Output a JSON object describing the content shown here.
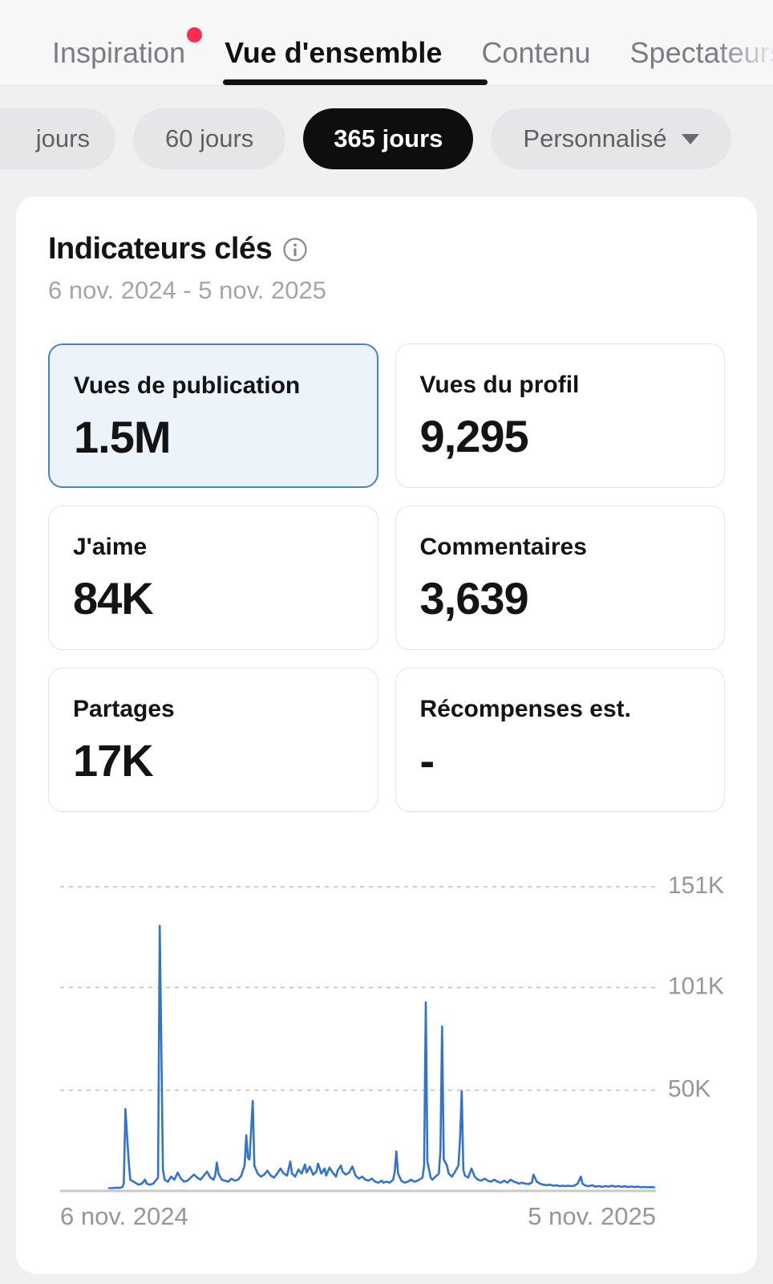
{
  "tabs": [
    {
      "label": "Inspiration",
      "active": false,
      "has_badge": true
    },
    {
      "label": "Vue d'ensemble",
      "active": true
    },
    {
      "label": "Contenu",
      "active": false
    },
    {
      "label": "Spectateurs",
      "active": false,
      "clipped": true
    }
  ],
  "pills": [
    {
      "label": "jours",
      "selected": false,
      "clipped_left": true
    },
    {
      "label": "60 jours",
      "selected": false
    },
    {
      "label": "365 jours",
      "selected": true
    },
    {
      "label": "Personnalisé",
      "selected": false,
      "has_caret": true
    }
  ],
  "card": {
    "title": "Indicateurs clés",
    "date_range": "6 nov. 2024 - 5 nov. 2025"
  },
  "metrics": [
    {
      "label": "Vues de publication",
      "value": "1.5M",
      "selected": true
    },
    {
      "label": "Vues du profil",
      "value": "9,295",
      "selected": false
    },
    {
      "label": "J'aime",
      "value": "84K",
      "selected": false
    },
    {
      "label": "Commentaires",
      "value": "3,639",
      "selected": false
    },
    {
      "label": "Partages",
      "value": "17K",
      "selected": false
    },
    {
      "label": "Récompenses est.",
      "value": "-",
      "selected": false
    }
  ],
  "colors": {
    "badge_red": "#fe2c55",
    "line_blue": "#3273d2",
    "selected_card_border": "#4584c6",
    "selected_card_bg": "#edf3fa",
    "grid_gray": "#bdbdbf",
    "axis_label_gray": "#95959a",
    "baseline_gray": "#c9c9cb"
  },
  "chart_data": {
    "type": "line",
    "series_name": "Vues de publication",
    "x_axis_labels": [
      "6 nov. 2024",
      "5 nov. 2025"
    ],
    "x_range_days": 365,
    "unit": "K",
    "ylim": [
      0,
      170
    ],
    "grid": true,
    "legend": false,
    "y_gridlines": [
      {
        "label": "151K",
        "value": 151
      },
      {
        "label": "101K",
        "value": 101
      },
      {
        "label": "50K",
        "value": 50
      }
    ],
    "points": [
      [
        30,
        0.8
      ],
      [
        32,
        0.8
      ],
      [
        34,
        1.0
      ],
      [
        36,
        0.9
      ],
      [
        38,
        1.2
      ],
      [
        39,
        3
      ],
      [
        40,
        40
      ],
      [
        42,
        14
      ],
      [
        43,
        5
      ],
      [
        45,
        4
      ],
      [
        47,
        3
      ],
      [
        48,
        2.5
      ],
      [
        50,
        3
      ],
      [
        52,
        5
      ],
      [
        53,
        3
      ],
      [
        55,
        2.5
      ],
      [
        57,
        3
      ],
      [
        58,
        4
      ],
      [
        60,
        6
      ],
      [
        61,
        131
      ],
      [
        63,
        10
      ],
      [
        64,
        5
      ],
      [
        66,
        4
      ],
      [
        68,
        6.5
      ],
      [
        70,
        5
      ],
      [
        72,
        8.5
      ],
      [
        74,
        5.5
      ],
      [
        76,
        4
      ],
      [
        78,
        4.5
      ],
      [
        80,
        6
      ],
      [
        82,
        7.5
      ],
      [
        84,
        6
      ],
      [
        86,
        5
      ],
      [
        88,
        7
      ],
      [
        90,
        9
      ],
      [
        92,
        6
      ],
      [
        94,
        5
      ],
      [
        95,
        7
      ],
      [
        96,
        13.5
      ],
      [
        97,
        8
      ],
      [
        99,
        5
      ],
      [
        101,
        4.5
      ],
      [
        103,
        4
      ],
      [
        105,
        5.5
      ],
      [
        107,
        4.5
      ],
      [
        109,
        5
      ],
      [
        111,
        7
      ],
      [
        113,
        12
      ],
      [
        114,
        27
      ],
      [
        115,
        16
      ],
      [
        116,
        15
      ],
      [
        118,
        44
      ],
      [
        119,
        12
      ],
      [
        121,
        8
      ],
      [
        123,
        6.5
      ],
      [
        125,
        7.5
      ],
      [
        127,
        9.5
      ],
      [
        129,
        7
      ],
      [
        131,
        6
      ],
      [
        133,
        8
      ],
      [
        135,
        10.5
      ],
      [
        137,
        8
      ],
      [
        139,
        7
      ],
      [
        141,
        14
      ],
      [
        142,
        8
      ],
      [
        144,
        6.5
      ],
      [
        146,
        10
      ],
      [
        148,
        8
      ],
      [
        150,
        12.5
      ],
      [
        151,
        8.5
      ],
      [
        153,
        11.5
      ],
      [
        155,
        7.5
      ],
      [
        157,
        9
      ],
      [
        158,
        13
      ],
      [
        160,
        8
      ],
      [
        162,
        10.5
      ],
      [
        163,
        7
      ],
      [
        165,
        11
      ],
      [
        167,
        8.5
      ],
      [
        169,
        6.5
      ],
      [
        170,
        9.5
      ],
      [
        172,
        12
      ],
      [
        173,
        9
      ],
      [
        175,
        7.5
      ],
      [
        177,
        8.5
      ],
      [
        179,
        11.5
      ],
      [
        181,
        7
      ],
      [
        183,
        5.5
      ],
      [
        185,
        6.5
      ],
      [
        187,
        5
      ],
      [
        189,
        4.5
      ],
      [
        191,
        5.5
      ],
      [
        193,
        4
      ],
      [
        195,
        3.5
      ],
      [
        197,
        4.5
      ],
      [
        198,
        3.5
      ],
      [
        200,
        4
      ],
      [
        202,
        3.5
      ],
      [
        204,
        5
      ],
      [
        205,
        9
      ],
      [
        206,
        19
      ],
      [
        207,
        8
      ],
      [
        209,
        4.5
      ],
      [
        211,
        3.5
      ],
      [
        213,
        4
      ],
      [
        215,
        5
      ],
      [
        217,
        4
      ],
      [
        219,
        4.5
      ],
      [
        221,
        5.5
      ],
      [
        222,
        6
      ],
      [
        223,
        12
      ],
      [
        224,
        93
      ],
      [
        225,
        14
      ],
      [
        227,
        6
      ],
      [
        228,
        5
      ],
      [
        230,
        6.5
      ],
      [
        232,
        8
      ],
      [
        233,
        20
      ],
      [
        234,
        81
      ],
      [
        235,
        15
      ],
      [
        237,
        12
      ],
      [
        238,
        8
      ],
      [
        240,
        6.5
      ],
      [
        242,
        9
      ],
      [
        244,
        12
      ],
      [
        245,
        25
      ],
      [
        246,
        49
      ],
      [
        247,
        10
      ],
      [
        248,
        7
      ],
      [
        250,
        6
      ],
      [
        252,
        10.5
      ],
      [
        254,
        6.5
      ],
      [
        256,
        5
      ],
      [
        258,
        4.5
      ],
      [
        260,
        5.5
      ],
      [
        262,
        4.5
      ],
      [
        264,
        4
      ],
      [
        266,
        5
      ],
      [
        268,
        4
      ],
      [
        270,
        3.5
      ],
      [
        272,
        4.5
      ],
      [
        274,
        3.5
      ],
      [
        276,
        5
      ],
      [
        278,
        4
      ],
      [
        280,
        3.5
      ],
      [
        281,
        3
      ],
      [
        283,
        3.5
      ],
      [
        285,
        3
      ],
      [
        287,
        2.8
      ],
      [
        289,
        3.5
      ],
      [
        290,
        7.5
      ],
      [
        292,
        4
      ],
      [
        294,
        3
      ],
      [
        296,
        2.5
      ],
      [
        298,
        2.2
      ],
      [
        300,
        2.5
      ],
      [
        302,
        2
      ],
      [
        304,
        2.2
      ],
      [
        306,
        1.8
      ],
      [
        308,
        2
      ],
      [
        310,
        1.8
      ],
      [
        311,
        2
      ],
      [
        313,
        1.8
      ],
      [
        315,
        2
      ],
      [
        317,
        3
      ],
      [
        319,
        6.5
      ],
      [
        320,
        3
      ],
      [
        322,
        2
      ],
      [
        324,
        1.8
      ],
      [
        326,
        2.2
      ],
      [
        328,
        1.5
      ],
      [
        330,
        1.8
      ],
      [
        332,
        1.4
      ],
      [
        334,
        1.8
      ],
      [
        336,
        1.5
      ],
      [
        338,
        2
      ],
      [
        340,
        1.5
      ],
      [
        342,
        1.8
      ],
      [
        344,
        1.4
      ],
      [
        346,
        1.7
      ],
      [
        348,
        1.3
      ],
      [
        350,
        1.6
      ],
      [
        352,
        1.3
      ],
      [
        354,
        1.5
      ],
      [
        356,
        1.2
      ],
      [
        358,
        1.4
      ],
      [
        360,
        1.2
      ],
      [
        362,
        1.3
      ],
      [
        364,
        1.2
      ]
    ]
  }
}
